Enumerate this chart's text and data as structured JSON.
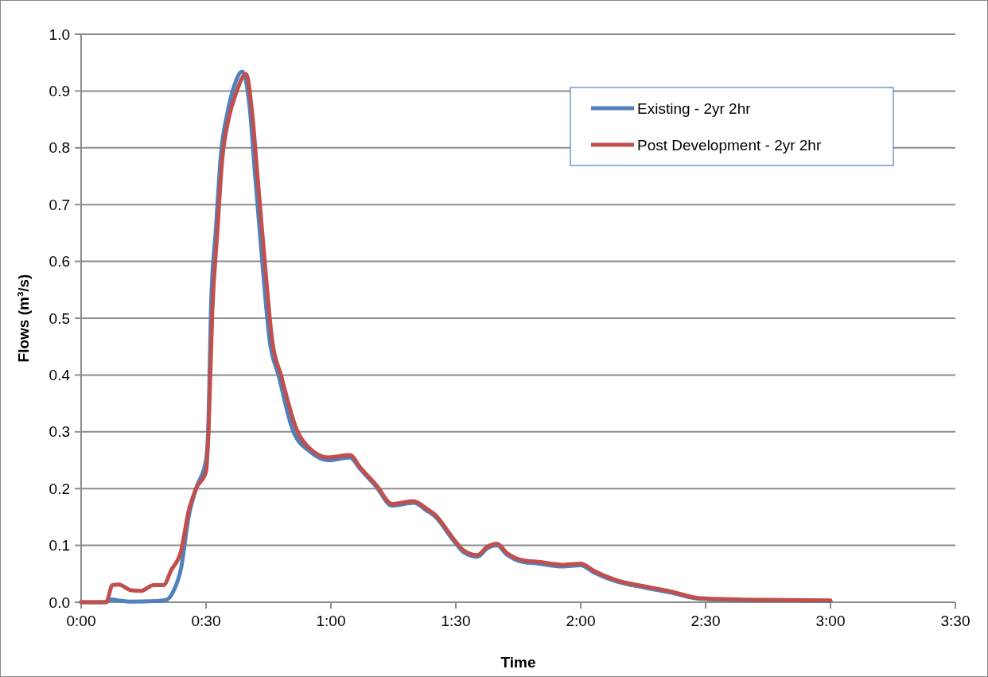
{
  "chart_data": {
    "type": "line",
    "xlabel": "Time",
    "ylabel": "Flows (m³/s)",
    "grid": "y",
    "legend": "top right",
    "marker": "none",
    "line_style": "solid",
    "xlim": [
      0,
      3.5
    ],
    "xticks": [
      {
        "value": 0,
        "label": "0:00"
      },
      {
        "value": 0.5,
        "label": "0:30"
      },
      {
        "value": 1,
        "label": "1:00"
      },
      {
        "value": 1.5,
        "label": "1:30"
      },
      {
        "value": 2,
        "label": "2:00"
      },
      {
        "value": 2.5,
        "label": "2:30"
      },
      {
        "value": 3,
        "label": "3:00"
      },
      {
        "value": 3.5,
        "label": "3:30"
      }
    ],
    "ylim": [
      0,
      1
    ],
    "yticks": [
      {
        "value": 0,
        "label": "0.0"
      },
      {
        "value": 0.1,
        "label": "0.1"
      },
      {
        "value": 0.2,
        "label": "0.2"
      },
      {
        "value": 0.3,
        "label": "0.3"
      },
      {
        "value": 0.4,
        "label": "0.4"
      },
      {
        "value": 0.5,
        "label": "0.5"
      },
      {
        "value": 0.6,
        "label": "0.6"
      },
      {
        "value": 0.7,
        "label": "0.7"
      },
      {
        "value": 0.8,
        "label": "0.8"
      },
      {
        "value": 0.9,
        "label": "0.9"
      },
      {
        "value": 1,
        "label": "1.0"
      }
    ],
    "series": [
      {
        "name": "Existing - 2yr 2hr",
        "color": "#4f81bd",
        "x": [
          0,
          0.1,
          0.12,
          0.15,
          0.2,
          0.3,
          0.34,
          0.37,
          0.4,
          0.43,
          0.46,
          0.5,
          0.51,
          0.52,
          0.54,
          0.56,
          0.585,
          0.61,
          0.645,
          0.675,
          0.695,
          0.725,
          0.755,
          0.79,
          0.85,
          0.917,
          0.99,
          1.076,
          1.118,
          1.182,
          1.245,
          1.331,
          1.385,
          1.417,
          1.49,
          1.532,
          1.586,
          1.627,
          1.665,
          1.704,
          1.767,
          1.831,
          1.927,
          2.0,
          2.054,
          2.149,
          2.255,
          2.36,
          2.478,
          2.627,
          2.838,
          3.0
        ],
        "values": [
          0,
          0,
          0.005,
          0.003,
          0.001,
          0.002,
          0.004,
          0.02,
          0.06,
          0.15,
          0.2,
          0.25,
          0.32,
          0.52,
          0.66,
          0.79,
          0.86,
          0.905,
          0.934,
          0.87,
          0.76,
          0.6,
          0.46,
          0.4,
          0.3,
          0.265,
          0.25,
          0.255,
          0.234,
          0.203,
          0.17,
          0.175,
          0.161,
          0.151,
          0.109,
          0.088,
          0.08,
          0.095,
          0.1,
          0.084,
          0.071,
          0.068,
          0.063,
          0.065,
          0.052,
          0.036,
          0.026,
          0.017,
          0.006,
          0.004,
          0.003,
          0.002
        ]
      },
      {
        "name": "Post Development - 2yr 2hr",
        "color": "#c0504d",
        "x": [
          0,
          0.1,
          0.125,
          0.15,
          0.2,
          0.24,
          0.29,
          0.33,
          0.36,
          0.4,
          0.43,
          0.46,
          0.5,
          0.51,
          0.525,
          0.545,
          0.565,
          0.59,
          0.62,
          0.66,
          0.685,
          0.705,
          0.735,
          0.765,
          0.8,
          0.863,
          0.917,
          0.99,
          1.076,
          1.118,
          1.182,
          1.245,
          1.331,
          1.385,
          1.417,
          1.49,
          1.532,
          1.586,
          1.627,
          1.665,
          1.704,
          1.767,
          1.831,
          1.927,
          2.0,
          2.054,
          2.149,
          2.255,
          2.36,
          2.478,
          2.627,
          2.838,
          3.0
        ],
        "values": [
          0,
          0,
          0.03,
          0.031,
          0.021,
          0.02,
          0.03,
          0.03,
          0.056,
          0.09,
          0.16,
          0.2,
          0.23,
          0.3,
          0.51,
          0.65,
          0.78,
          0.85,
          0.896,
          0.93,
          0.86,
          0.756,
          0.6,
          0.46,
          0.4,
          0.304,
          0.27,
          0.255,
          0.259,
          0.237,
          0.206,
          0.173,
          0.178,
          0.164,
          0.154,
          0.112,
          0.091,
          0.083,
          0.098,
          0.103,
          0.087,
          0.074,
          0.071,
          0.066,
          0.068,
          0.055,
          0.038,
          0.028,
          0.019,
          0.007,
          0.005,
          0.004,
          0.003
        ]
      }
    ]
  }
}
